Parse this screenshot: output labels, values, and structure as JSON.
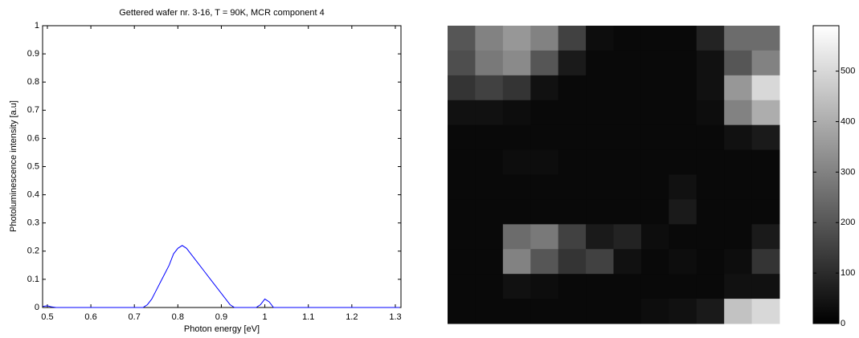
{
  "chart_data": [
    {
      "type": "line",
      "title": "Gettered wafer nr. 3-16, T = 90K, MCR component 4",
      "xlabel": "Photon energy [eV]",
      "ylabel": "Photoluminescence intensity [a.u]",
      "x": [
        0.49,
        0.5,
        0.51,
        0.52,
        0.72,
        0.73,
        0.74,
        0.75,
        0.76,
        0.77,
        0.78,
        0.79,
        0.8,
        0.81,
        0.82,
        0.83,
        0.84,
        0.85,
        0.86,
        0.87,
        0.88,
        0.89,
        0.9,
        0.91,
        0.92,
        0.93,
        0.98,
        0.99,
        1.0,
        1.01,
        1.02,
        1.31
      ],
      "values": [
        0.004,
        0.006,
        0.002,
        0,
        0,
        0.01,
        0.03,
        0.06,
        0.09,
        0.12,
        0.15,
        0.19,
        0.21,
        0.22,
        0.21,
        0.19,
        0.17,
        0.15,
        0.13,
        0.11,
        0.09,
        0.07,
        0.05,
        0.03,
        0.01,
        0,
        0,
        0.01,
        0.03,
        0.02,
        0,
        0
      ],
      "color": "#0000ff",
      "xlim": [
        0.489,
        1.313
      ],
      "ylim": [
        0,
        1
      ],
      "xticks": [
        0.5,
        0.6,
        0.7,
        0.8,
        0.9,
        1,
        1.1,
        1.2,
        1.3
      ],
      "yticks": [
        0,
        0.1,
        0.2,
        0.3,
        0.4,
        0.5,
        0.6,
        0.7,
        0.8,
        0.9,
        1
      ]
    },
    {
      "type": "heatmap",
      "colormap": "gray",
      "zlim": [
        0,
        590
      ],
      "zticks": [
        0,
        100,
        200,
        300,
        400,
        500
      ],
      "values": [
        [
          200,
          300,
          350,
          300,
          150,
          30,
          20,
          20,
          20,
          80,
          250,
          250
        ],
        [
          180,
          280,
          320,
          200,
          60,
          20,
          20,
          20,
          20,
          40,
          200,
          300
        ],
        [
          120,
          150,
          120,
          40,
          20,
          20,
          20,
          20,
          20,
          40,
          350,
          500
        ],
        [
          40,
          40,
          30,
          20,
          20,
          20,
          20,
          20,
          20,
          30,
          300,
          400
        ],
        [
          20,
          20,
          20,
          20,
          20,
          20,
          20,
          20,
          20,
          20,
          40,
          60
        ],
        [
          20,
          20,
          30,
          30,
          20,
          20,
          20,
          20,
          20,
          20,
          20,
          20
        ],
        [
          20,
          20,
          20,
          20,
          20,
          20,
          20,
          20,
          40,
          20,
          20,
          20
        ],
        [
          20,
          20,
          20,
          20,
          20,
          20,
          20,
          20,
          60,
          20,
          20,
          20
        ],
        [
          20,
          20,
          250,
          280,
          150,
          60,
          80,
          30,
          20,
          20,
          20,
          60
        ],
        [
          20,
          20,
          300,
          200,
          120,
          150,
          40,
          20,
          30,
          20,
          30,
          120
        ],
        [
          20,
          20,
          40,
          30,
          20,
          20,
          20,
          20,
          20,
          20,
          40,
          40
        ],
        [
          20,
          20,
          20,
          20,
          20,
          20,
          20,
          30,
          40,
          60,
          450,
          500
        ]
      ]
    }
  ]
}
